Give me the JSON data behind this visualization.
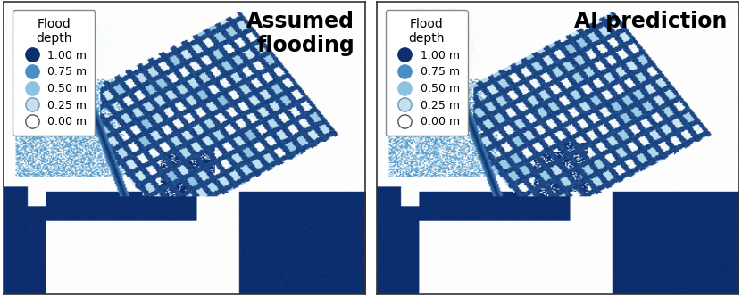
{
  "panel_titles": [
    "Assumed\nflooding",
    "AI prediction"
  ],
  "title_fontsize": 17,
  "title_fontweight": "bold",
  "legend_title": "Flood\ndepth",
  "legend_items": [
    {
      "label": "1.00 m",
      "color": "#0d2f6e",
      "edge": "#0d2f6e"
    },
    {
      "label": "0.75 m",
      "color": "#4a8fc4",
      "edge": "#4a8fc4"
    },
    {
      "label": "0.50 m",
      "color": "#8ec3e0",
      "edge": "#8ec3e0"
    },
    {
      "label": "0.25 m",
      "color": "#c8dff0",
      "edge": "#6699bb"
    },
    {
      "label": "0.00 m",
      "color": "#ffffff",
      "edge": "#555555"
    }
  ],
  "bg_color": "#ffffff",
  "border_color": "#333333",
  "map_bg": "#ffffff",
  "marker_size": 11,
  "legend_fontsize": 9,
  "legend_title_fontsize": 10,
  "figsize": [
    8.31,
    3.32
  ],
  "dpi": 100
}
